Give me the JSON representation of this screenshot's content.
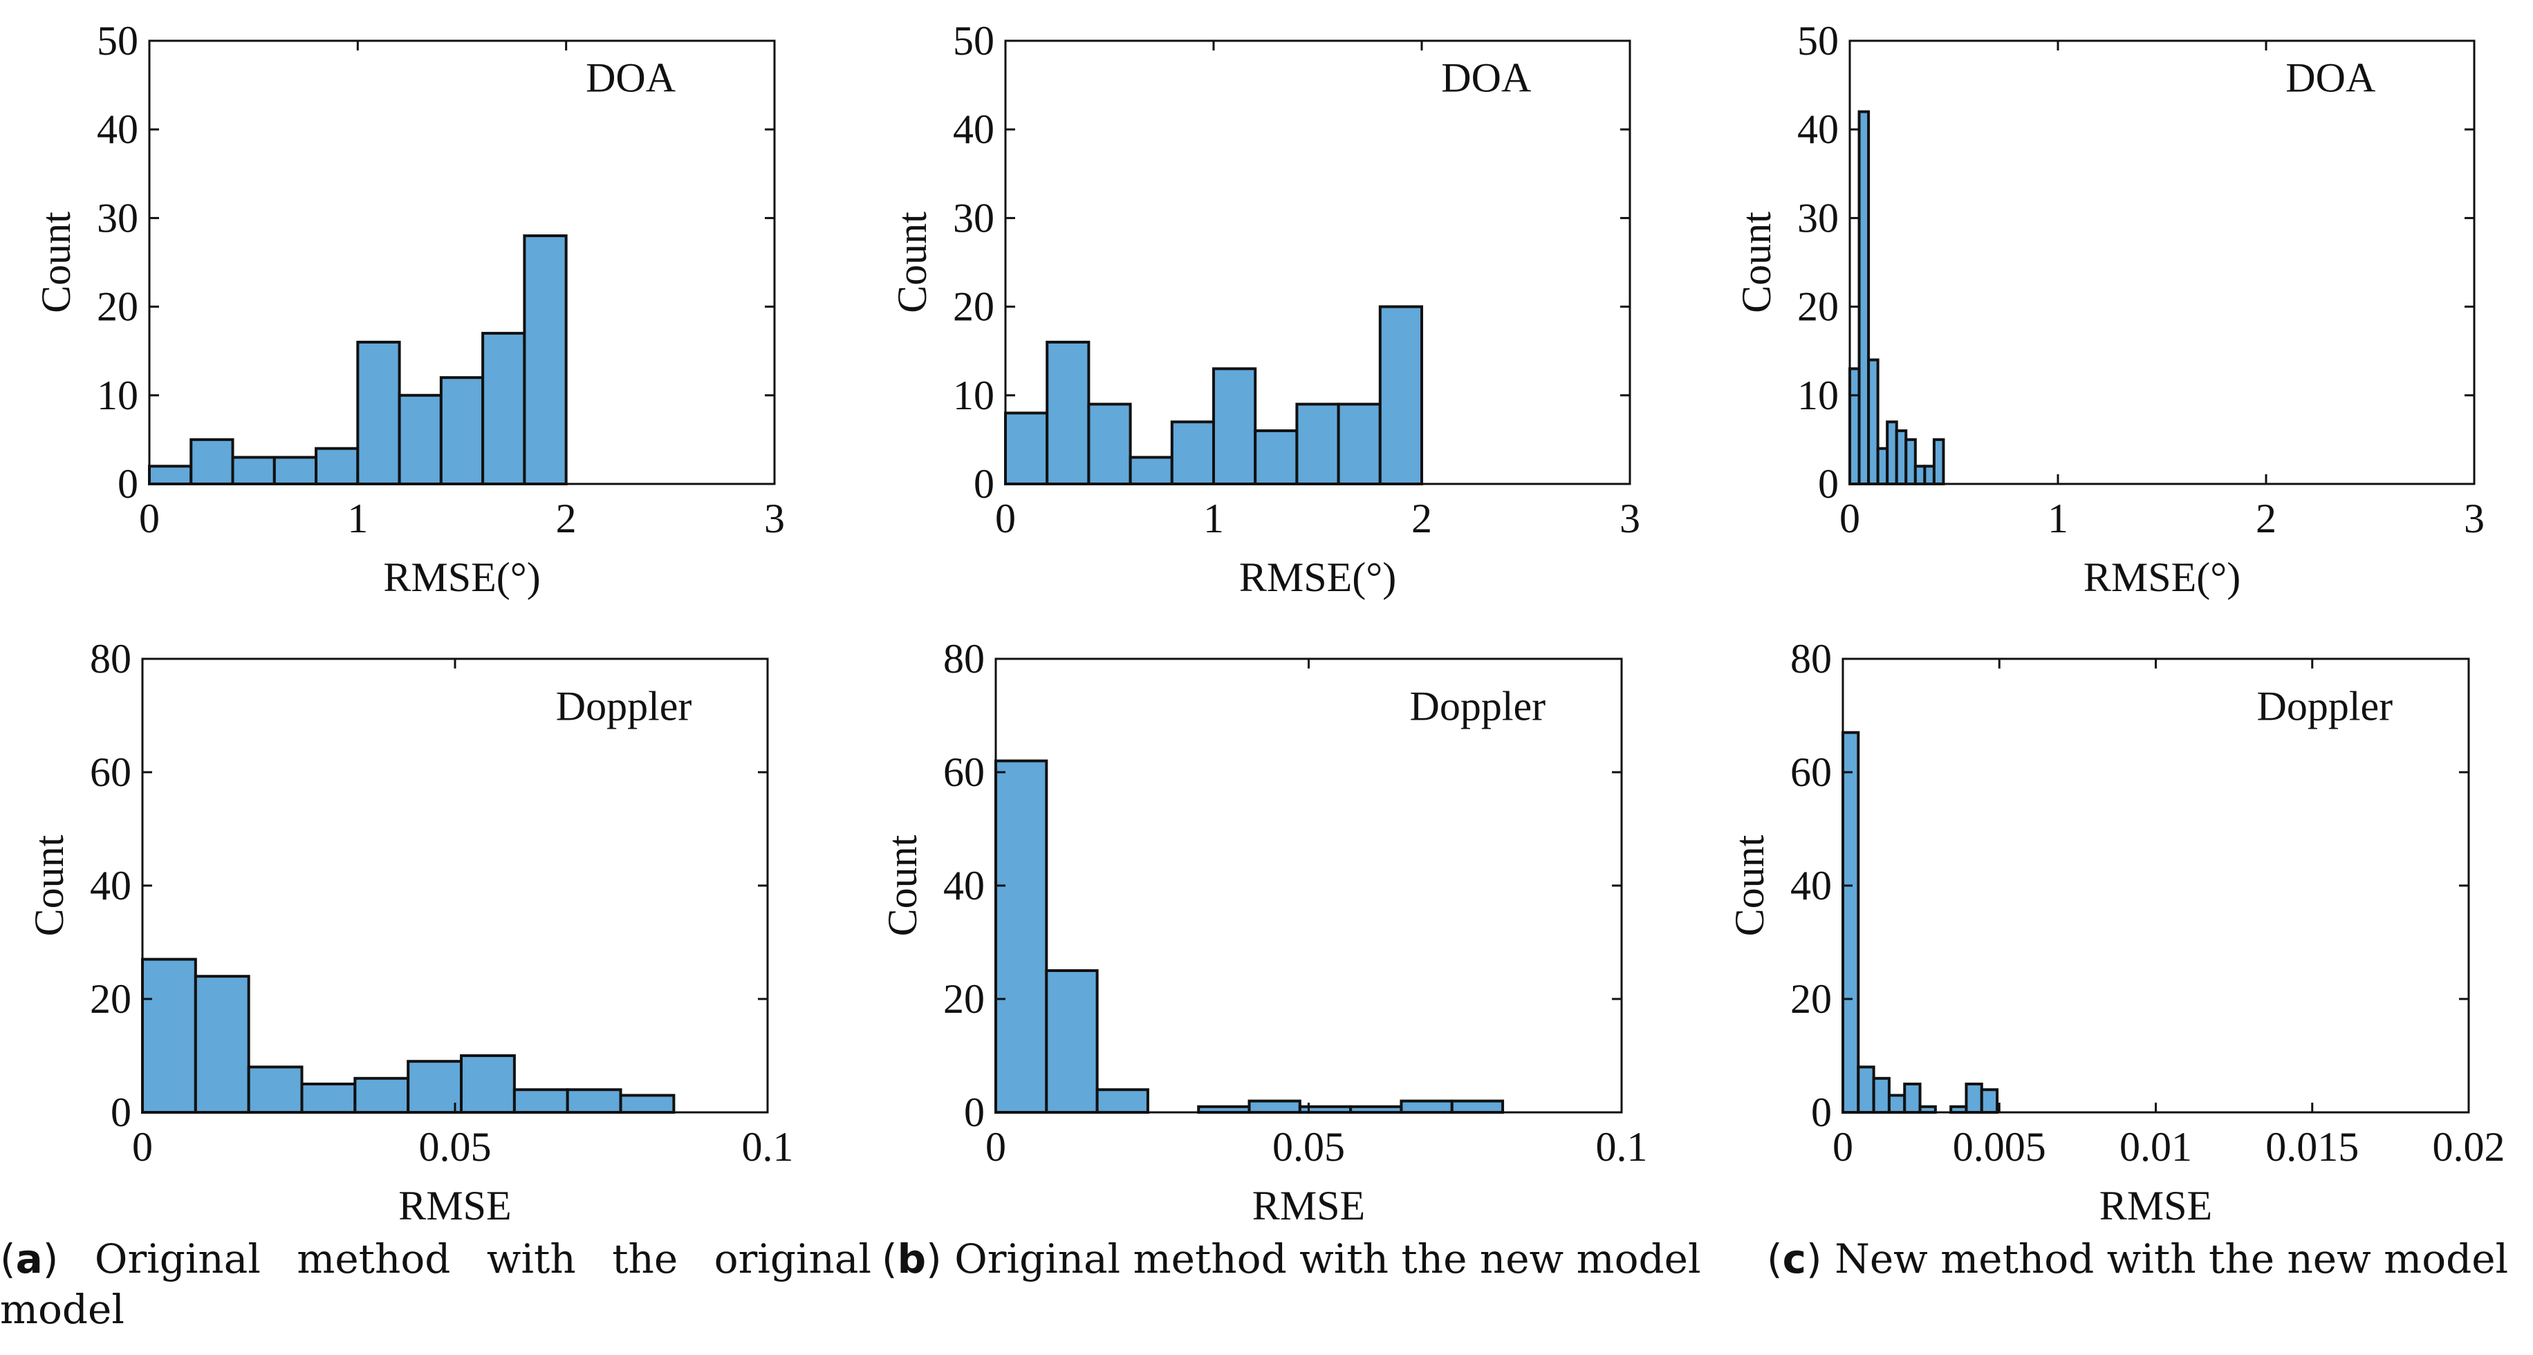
{
  "colors": {
    "bar_fill": "#62a8d9",
    "bar_edge": "#111111",
    "axis": "#111111",
    "text": "#111111"
  },
  "captions": [
    {
      "letter": "a",
      "text": "Original method with the original model"
    },
    {
      "letter": "b",
      "text": "Original method with the new model"
    },
    {
      "letter": "c",
      "text": "New method with the new model"
    }
  ],
  "chart_data": [
    {
      "id": "a-doa",
      "type": "bar",
      "annotation": "DOA",
      "xlabel": "RMSE(°)",
      "ylabel": "Count",
      "xlim": [
        0,
        3
      ],
      "ylim": [
        0,
        50
      ],
      "xticks": [
        0,
        1,
        2,
        3
      ],
      "xtick_labels": [
        "0",
        "1",
        "2",
        "3"
      ],
      "yticks": [
        0,
        10,
        20,
        30,
        40,
        50
      ],
      "ytick_labels": [
        "0",
        "10",
        "20",
        "30",
        "40",
        "50"
      ],
      "bin_start": 0,
      "bin_width": 0.2,
      "counts": [
        2,
        5,
        3,
        3,
        4,
        16,
        10,
        12,
        17,
        28
      ]
    },
    {
      "id": "b-doa",
      "type": "bar",
      "annotation": "DOA",
      "xlabel": "RMSE(°)",
      "ylabel": "Count",
      "xlim": [
        0,
        3
      ],
      "ylim": [
        0,
        50
      ],
      "xticks": [
        0,
        1,
        2,
        3
      ],
      "xtick_labels": [
        "0",
        "1",
        "2",
        "3"
      ],
      "yticks": [
        0,
        10,
        20,
        30,
        40,
        50
      ],
      "ytick_labels": [
        "0",
        "10",
        "20",
        "30",
        "40",
        "50"
      ],
      "bin_start": 0,
      "bin_width": 0.2,
      "counts": [
        8,
        16,
        9,
        3,
        7,
        13,
        6,
        9,
        9,
        20
      ]
    },
    {
      "id": "c-doa",
      "type": "bar",
      "annotation": "DOA",
      "xlabel": "RMSE(°)",
      "ylabel": "Count",
      "xlim": [
        0,
        3
      ],
      "ylim": [
        0,
        50
      ],
      "xticks": [
        0,
        1,
        2,
        3
      ],
      "xtick_labels": [
        "0",
        "1",
        "2",
        "3"
      ],
      "yticks": [
        0,
        10,
        20,
        30,
        40,
        50
      ],
      "ytick_labels": [
        "0",
        "10",
        "20",
        "30",
        "40",
        "50"
      ],
      "bin_start": 0,
      "bin_width": 0.045,
      "counts": [
        13,
        42,
        14,
        4,
        7,
        6,
        5,
        2,
        2,
        5
      ]
    },
    {
      "id": "a-doppler",
      "type": "bar",
      "annotation": "Doppler",
      "xlabel": "RMSE",
      "ylabel": "Count",
      "xlim": [
        0,
        0.1
      ],
      "ylim": [
        0,
        80
      ],
      "xticks": [
        0,
        0.05,
        0.1
      ],
      "xtick_labels": [
        "0",
        "0.05",
        "0.1"
      ],
      "yticks": [
        0,
        20,
        40,
        60,
        80
      ],
      "ytick_labels": [
        "0",
        "20",
        "40",
        "60",
        "80"
      ],
      "bin_start": 0,
      "bin_width": 0.0085,
      "counts": [
        27,
        24,
        8,
        5,
        6,
        9,
        10,
        4,
        4,
        3
      ]
    },
    {
      "id": "b-doppler",
      "type": "bar",
      "annotation": "Doppler",
      "xlabel": "RMSE",
      "ylabel": "Count",
      "xlim": [
        0,
        0.1
      ],
      "ylim": [
        0,
        80
      ],
      "xticks": [
        0,
        0.05,
        0.1
      ],
      "xtick_labels": [
        "0",
        "0.05",
        "0.1"
      ],
      "yticks": [
        0,
        20,
        40,
        60,
        80
      ],
      "ytick_labels": [
        "0",
        "20",
        "40",
        "60",
        "80"
      ],
      "bin_start": 0,
      "bin_width": 0.0081,
      "counts": [
        62,
        25,
        4,
        0,
        1,
        2,
        1,
        1,
        2,
        2
      ]
    },
    {
      "id": "c-doppler",
      "type": "bar",
      "annotation": "Doppler",
      "xlabel": "RMSE",
      "ylabel": "Count",
      "xlim": [
        0,
        0.02
      ],
      "ylim": [
        0,
        80
      ],
      "xticks": [
        0,
        0.005,
        0.01,
        0.015,
        0.02
      ],
      "xtick_labels": [
        "0",
        "0.005",
        "0.01",
        "0.015",
        "0.02"
      ],
      "yticks": [
        0,
        20,
        40,
        60,
        80
      ],
      "ytick_labels": [
        "0",
        "20",
        "40",
        "60",
        "80"
      ],
      "bin_start": 0,
      "bin_width": 0.000493,
      "counts": [
        67,
        8,
        6,
        3,
        5,
        1,
        0,
        1,
        5,
        4
      ]
    }
  ]
}
